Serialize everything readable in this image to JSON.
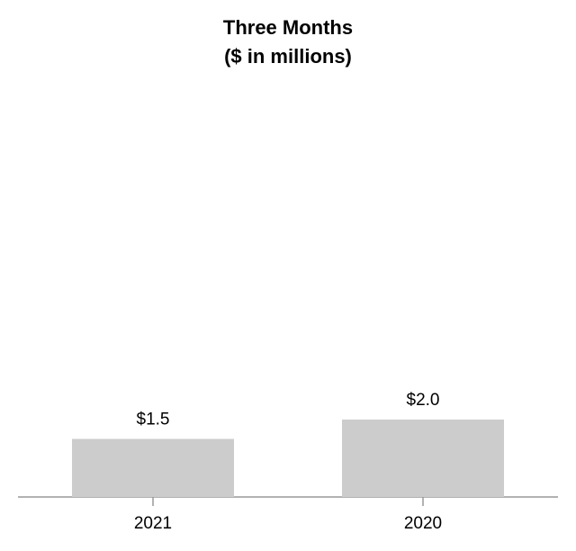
{
  "chart_data": {
    "type": "bar",
    "title": "Three Months",
    "subtitle": "($ in millions)",
    "categories": [
      "2021",
      "2020"
    ],
    "values": [
      1.5,
      2.0
    ],
    "value_labels": [
      "$1.5",
      "$2.0"
    ],
    "color": "#cccccc"
  }
}
